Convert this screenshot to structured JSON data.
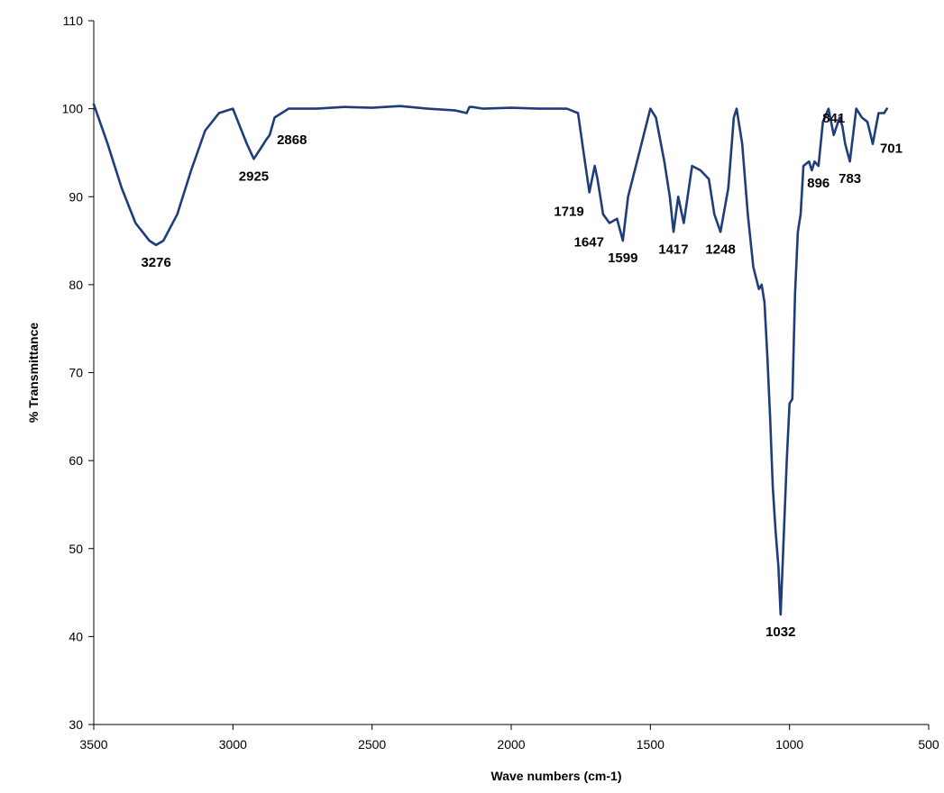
{
  "chart_data": {
    "type": "line",
    "title": "",
    "xlabel": "Wave numbers (cm-1)",
    "ylabel": "% Transmittance",
    "xlim": [
      3500,
      500
    ],
    "ylim": [
      30,
      110
    ],
    "x_reversed": true,
    "x_ticks": [
      3500,
      3000,
      2500,
      2000,
      1500,
      1000,
      500
    ],
    "y_ticks": [
      30,
      40,
      50,
      60,
      70,
      80,
      90,
      100,
      110
    ],
    "grid": false,
    "legend": "none",
    "line_color": "#1f3d7a",
    "series": [
      {
        "x": [
          3500,
          3450,
          3400,
          3350,
          3300,
          3276,
          3250,
          3200,
          3150,
          3100,
          3050,
          3000,
          2975,
          2950,
          2925,
          2900,
          2880,
          2868,
          2850,
          2800,
          2700,
          2600,
          2500,
          2400,
          2300,
          2200,
          2160,
          2150,
          2140,
          2100,
          2000,
          1900,
          1800,
          1760,
          1740,
          1719,
          1700,
          1690,
          1670,
          1647,
          1620,
          1599,
          1580,
          1540,
          1500,
          1480,
          1450,
          1430,
          1417,
          1400,
          1380,
          1350,
          1320,
          1290,
          1270,
          1248,
          1220,
          1200,
          1190,
          1170,
          1150,
          1130,
          1110,
          1100,
          1090,
          1080,
          1070,
          1060,
          1050,
          1040,
          1032,
          1020,
          1010,
          1000,
          990,
          980,
          970,
          960,
          950,
          930,
          920,
          910,
          896,
          880,
          860,
          841,
          820,
          810,
          800,
          783,
          760,
          740,
          720,
          701,
          680,
          660,
          650
        ],
        "y": [
          100.5,
          96,
          91,
          87,
          85,
          84.5,
          85,
          88,
          93,
          97.5,
          99.5,
          100,
          98,
          96,
          94.3,
          95.5,
          96.5,
          97,
          99,
          100,
          100,
          100.2,
          100.1,
          100.3,
          100,
          99.8,
          99.5,
          100.2,
          100.2,
          100,
          100.1,
          100,
          100,
          99.5,
          95,
          90.5,
          93.5,
          92,
          88,
          87,
          87.5,
          85,
          90,
          95,
          100,
          99,
          94,
          90,
          86,
          90,
          87,
          93.5,
          93,
          92,
          88,
          86,
          91,
          99,
          100,
          96,
          88,
          82,
          79.5,
          80,
          78,
          72,
          65,
          57,
          52,
          48,
          42.5,
          52,
          60,
          66.5,
          67,
          79,
          86,
          88,
          93.5,
          94,
          93,
          94,
          93.5,
          98.5,
          100,
          97,
          99,
          98,
          96,
          94,
          100,
          99,
          98.5,
          96,
          99.5,
          99.5,
          100
        ]
      }
    ],
    "annotations": [
      {
        "text": "3276",
        "x": 3276,
        "y": 84.5,
        "pos": "below"
      },
      {
        "text": "2925",
        "x": 2925,
        "y": 94.3,
        "pos": "below"
      },
      {
        "text": "2868",
        "x": 2868,
        "y": 97,
        "pos": "right"
      },
      {
        "text": "1719",
        "x": 1719,
        "y": 90.5,
        "pos": "below-left"
      },
      {
        "text": "1647",
        "x": 1647,
        "y": 87,
        "pos": "below-left"
      },
      {
        "text": "1599",
        "x": 1599,
        "y": 85,
        "pos": "below"
      },
      {
        "text": "1417",
        "x": 1417,
        "y": 86,
        "pos": "below"
      },
      {
        "text": "1248",
        "x": 1248,
        "y": 86,
        "pos": "below"
      },
      {
        "text": "1032",
        "x": 1032,
        "y": 42.5,
        "pos": "below"
      },
      {
        "text": "896",
        "x": 896,
        "y": 93.5,
        "pos": "below"
      },
      {
        "text": "841",
        "x": 841,
        "y": 97,
        "pos": "above"
      },
      {
        "text": "783",
        "x": 783,
        "y": 94,
        "pos": "below"
      },
      {
        "text": "701",
        "x": 701,
        "y": 96,
        "pos": "right"
      }
    ]
  }
}
